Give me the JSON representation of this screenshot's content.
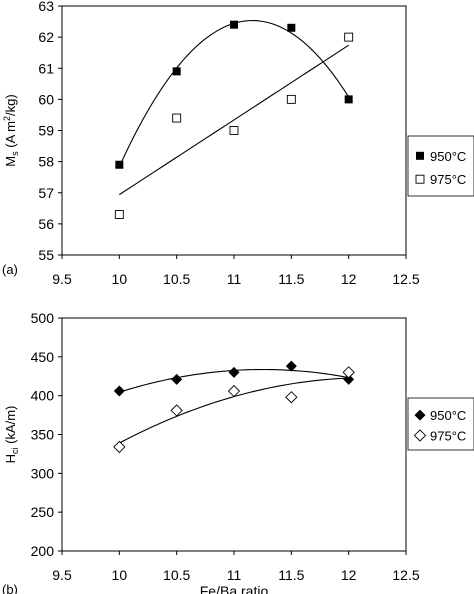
{
  "chart_data": [
    {
      "type": "scatter",
      "panel_label": "(a)",
      "ylabel": "M",
      "ylabel_sub": "s",
      "ylabel_unit": " (A m",
      "ylabel_sup": "2",
      "ylabel_end": "/kg)",
      "xlabel": "",
      "xlim": [
        9.5,
        12.5
      ],
      "ylim": [
        55,
        63
      ],
      "xticks": [
        "9.5",
        "10",
        "10.5",
        "11",
        "11.5",
        "12",
        "12.5"
      ],
      "yticks": [
        "55",
        "56",
        "57",
        "58",
        "59",
        "60",
        "61",
        "62",
        "63"
      ],
      "grid": false,
      "legend": "right",
      "series": [
        {
          "name": "950°C",
          "marker": "filled-square",
          "x": [
            10,
            10.5,
            11,
            11.5,
            12
          ],
          "y": [
            57.9,
            60.9,
            62.4,
            62.3,
            60.0
          ],
          "trend": "polynomial"
        },
        {
          "name": "975°C",
          "marker": "open-square",
          "x": [
            10,
            10.5,
            11,
            11.5,
            12
          ],
          "y": [
            56.3,
            59.4,
            59.0,
            60.0,
            62.0
          ],
          "trend": "linear"
        }
      ]
    },
    {
      "type": "scatter",
      "panel_label": "(b)",
      "ylabel": "H",
      "ylabel_sub": "ci",
      "ylabel_unit": " (kA/m)",
      "xlabel": "Fe/Ba ratio",
      "xlim": [
        9.5,
        12.5
      ],
      "ylim": [
        200,
        500
      ],
      "xticks": [
        "9.5",
        "10",
        "10.5",
        "11",
        "11.5",
        "12",
        "12.5"
      ],
      "yticks": [
        "200",
        "250",
        "300",
        "350",
        "400",
        "450",
        "500"
      ],
      "grid": false,
      "legend": "right",
      "series": [
        {
          "name": "950°C",
          "marker": "filled-diamond",
          "x": [
            10,
            10.5,
            11,
            11.5,
            12
          ],
          "y": [
            406,
            421,
            430,
            438,
            421
          ],
          "trend": "polynomial"
        },
        {
          "name": "975°C",
          "marker": "open-diamond",
          "x": [
            10,
            10.5,
            11,
            11.5,
            12
          ],
          "y": [
            334,
            381,
            406,
            398,
            430
          ],
          "trend": "polynomial"
        }
      ]
    }
  ]
}
